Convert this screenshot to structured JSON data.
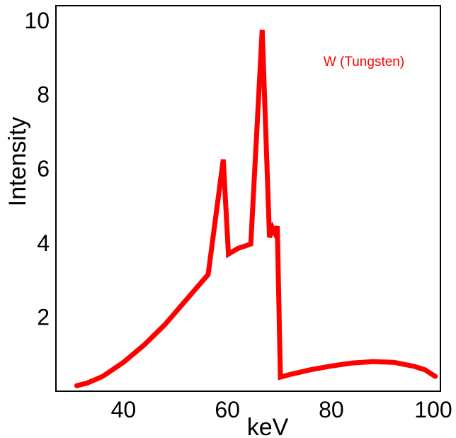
{
  "chart_data": {
    "type": "line",
    "title": "",
    "xlabel": "keV",
    "ylabel": "Intensity",
    "xlim": [
      27,
      101
    ],
    "ylim": [
      0,
      10.4
    ],
    "xticks": [
      40,
      60,
      80,
      100
    ],
    "yticks": [
      2,
      4,
      6,
      8,
      10
    ],
    "xtick_labels": [
      "40",
      "60",
      "80",
      "100"
    ],
    "ytick_labels": [
      "2",
      "4",
      "6",
      "8",
      "10"
    ],
    "grid": false,
    "legend_position": "top-right",
    "series": [
      {
        "name": "W (Tungsten)",
        "color": "#ff0000",
        "x": [
          31,
          33,
          36,
          40,
          44,
          48,
          52,
          56.3,
          59.2,
          60.2,
          62,
          64.5,
          66.7,
          68.1,
          68.7,
          69.2,
          69.6,
          70.2,
          72,
          76,
          80,
          84,
          88,
          92,
          96,
          98,
          100
        ],
        "y": [
          0.15,
          0.22,
          0.4,
          0.78,
          1.25,
          1.8,
          2.45,
          3.15,
          6.25,
          3.7,
          3.85,
          3.97,
          9.75,
          4.15,
          4.4,
          4.25,
          4.45,
          0.38,
          0.45,
          0.58,
          0.68,
          0.76,
          0.8,
          0.78,
          0.67,
          0.58,
          0.4
        ]
      }
    ]
  }
}
